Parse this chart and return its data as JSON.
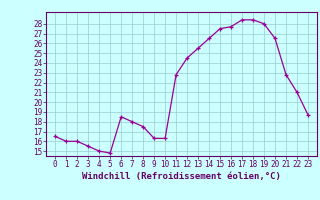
{
  "x": [
    0,
    1,
    2,
    3,
    4,
    5,
    6,
    7,
    8,
    9,
    10,
    11,
    12,
    13,
    14,
    15,
    16,
    17,
    18,
    19,
    20,
    21,
    22,
    23
  ],
  "y": [
    16.5,
    16.0,
    16.0,
    15.5,
    15.0,
    14.8,
    18.5,
    18.0,
    17.5,
    16.3,
    16.3,
    22.8,
    24.5,
    25.5,
    26.5,
    27.5,
    27.7,
    28.4,
    28.4,
    28.0,
    26.5,
    22.8,
    21.0,
    18.7
  ],
  "ylim_min": 14.5,
  "ylim_max": 29.2,
  "xlim_min": -0.8,
  "xlim_max": 23.8,
  "yticks": [
    15,
    16,
    17,
    18,
    19,
    20,
    21,
    22,
    23,
    24,
    25,
    26,
    27,
    28
  ],
  "xticks": [
    0,
    1,
    2,
    3,
    4,
    5,
    6,
    7,
    8,
    9,
    10,
    11,
    12,
    13,
    14,
    15,
    16,
    17,
    18,
    19,
    20,
    21,
    22,
    23
  ],
  "xlabel": "Windchill (Refroidissement éolien,°C)",
  "line_color": "#990099",
  "marker": "+",
  "bg_color": "#ccffff",
  "grid_color": "#99cccc",
  "tick_color": "#660066",
  "label_color": "#660066",
  "tick_fontsize": 5.5,
  "label_fontsize": 6.5
}
